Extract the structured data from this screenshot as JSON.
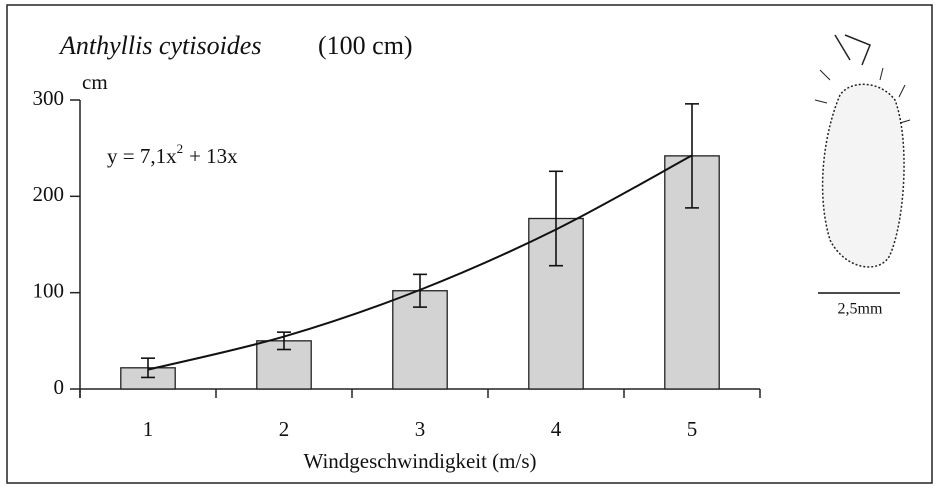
{
  "chart_data": {
    "type": "bar",
    "title": "Anthyllis cytisoides",
    "subtitle": "(100 cm)",
    "y_unit": "cm",
    "equation": [
      "y = 7,1x",
      "2",
      "+ 13x"
    ],
    "x_label": "Windgeschwindigkeit (m/s)",
    "categories": [
      "1",
      "2",
      "3",
      "4",
      "5"
    ],
    "values": [
      22,
      50,
      102,
      177,
      242
    ],
    "errors": [
      10,
      9,
      17,
      49,
      54
    ],
    "color": "#d3d3d3",
    "fit": {
      "x": [
        1,
        2,
        3,
        4,
        5
      ],
      "values": [
        20.1,
        54.4,
        102.9,
        165.6,
        242.5
      ]
    },
    "ylim": [
      0,
      300
    ],
    "yticks": [
      0,
      100,
      200,
      300
    ]
  },
  "illustration": {
    "scale_label": "2,5mm"
  }
}
